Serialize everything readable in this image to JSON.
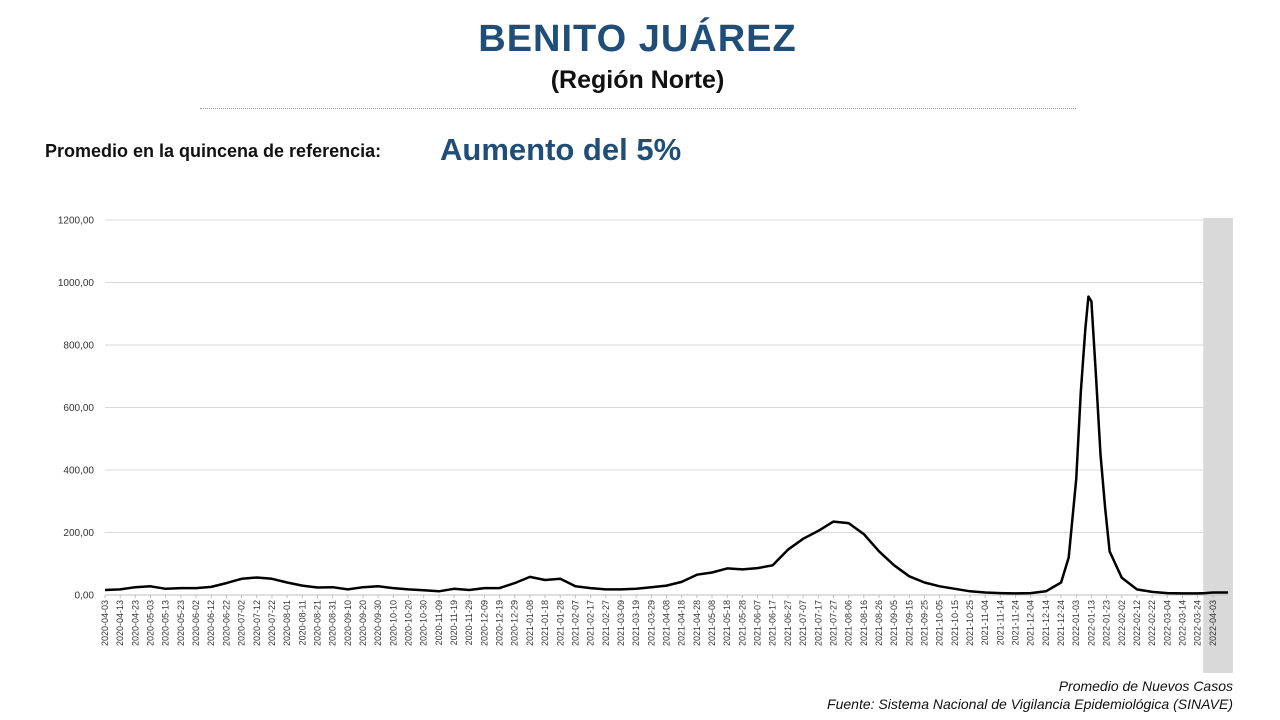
{
  "header": {
    "title": "BENITO JUÁREZ",
    "subtitle": "(Región Norte)"
  },
  "summary": {
    "label": "Promedio en la quincena de referencia:",
    "value": "Aumento del 5%"
  },
  "footer": {
    "legend": "Promedio de Nuevos Casos",
    "source": "Fuente: Sistema Nacional de Vigilancia Epidemiológica (SINAVE)"
  },
  "colors": {
    "title": "#1f4e79",
    "line": "#000000",
    "grid": "#d9d9d9",
    "highlight": "#d9d9d9"
  },
  "chart_data": {
    "type": "line",
    "title": "",
    "xlabel": "",
    "ylabel": "",
    "ylim": [
      0,
      1200
    ],
    "yticks": [
      "0,00",
      "200,00",
      "400,00",
      "600,00",
      "800,00",
      "1000,00",
      "1200,00"
    ],
    "grid": true,
    "shaded_range": [
      "2022-03-29",
      "2022-04-13"
    ],
    "x_tick_labels": [
      "2020-04-03",
      "2020-04-13",
      "2020-04-23",
      "2020-05-03",
      "2020-05-13",
      "2020-05-23",
      "2020-06-02",
      "2020-06-12",
      "2020-06-22",
      "2020-07-02",
      "2020-07-12",
      "2020-07-22",
      "2020-08-01",
      "2020-08-11",
      "2020-08-21",
      "2020-08-31",
      "2020-09-10",
      "2020-09-20",
      "2020-09-30",
      "2020-10-10",
      "2020-10-20",
      "2020-10-30",
      "2020-11-09",
      "2020-11-19",
      "2020-11-29",
      "2020-12-09",
      "2020-12-19",
      "2020-12-29",
      "2021-01-08",
      "2021-01-18",
      "2021-01-28",
      "2021-02-07",
      "2021-02-17",
      "2021-02-27",
      "2021-03-09",
      "2021-03-19",
      "2021-03-29",
      "2021-04-08",
      "2021-04-18",
      "2021-04-28",
      "2021-05-08",
      "2021-05-18",
      "2021-05-28",
      "2021-06-07",
      "2021-06-17",
      "2021-06-27",
      "2021-07-07",
      "2021-07-17",
      "2021-07-27",
      "2021-08-06",
      "2021-08-16",
      "2021-08-26",
      "2021-09-05",
      "2021-09-15",
      "2021-09-25",
      "2021-10-05",
      "2021-10-15",
      "2021-10-25",
      "2021-11-04",
      "2021-11-14",
      "2021-11-24",
      "2021-12-04",
      "2021-12-14",
      "2021-12-24",
      "2022-01-03",
      "2022-01-13",
      "2022-01-23",
      "2022-02-02",
      "2022-02-12",
      "2022-02-22",
      "2022-03-04",
      "2022-03-14",
      "2022-03-24",
      "2022-04-03"
    ],
    "series": [
      {
        "points": [
          [
            "2020-04-03",
            16
          ],
          [
            "2020-04-13",
            18
          ],
          [
            "2020-04-23",
            25
          ],
          [
            "2020-05-03",
            28
          ],
          [
            "2020-05-13",
            20
          ],
          [
            "2020-05-23",
            22
          ],
          [
            "2020-06-02",
            22
          ],
          [
            "2020-06-12",
            26
          ],
          [
            "2020-06-22",
            38
          ],
          [
            "2020-07-02",
            52
          ],
          [
            "2020-07-12",
            56
          ],
          [
            "2020-07-22",
            52
          ],
          [
            "2020-08-01",
            40
          ],
          [
            "2020-08-11",
            30
          ],
          [
            "2020-08-21",
            24
          ],
          [
            "2020-08-31",
            25
          ],
          [
            "2020-09-10",
            18
          ],
          [
            "2020-09-20",
            25
          ],
          [
            "2020-09-30",
            28
          ],
          [
            "2020-10-10",
            22
          ],
          [
            "2020-10-20",
            18
          ],
          [
            "2020-10-30",
            15
          ],
          [
            "2020-11-09",
            12
          ],
          [
            "2020-11-19",
            20
          ],
          [
            "2020-11-29",
            16
          ],
          [
            "2020-12-09",
            22
          ],
          [
            "2020-12-19",
            22
          ],
          [
            "2020-12-29",
            38
          ],
          [
            "2021-01-08",
            58
          ],
          [
            "2021-01-18",
            48
          ],
          [
            "2021-01-28",
            52
          ],
          [
            "2021-02-07",
            28
          ],
          [
            "2021-02-17",
            22
          ],
          [
            "2021-02-27",
            18
          ],
          [
            "2021-03-09",
            18
          ],
          [
            "2021-03-19",
            20
          ],
          [
            "2021-03-29",
            25
          ],
          [
            "2021-04-08",
            30
          ],
          [
            "2021-04-18",
            42
          ],
          [
            "2021-04-28",
            65
          ],
          [
            "2021-05-08",
            72
          ],
          [
            "2021-05-18",
            85
          ],
          [
            "2021-05-28",
            82
          ],
          [
            "2021-06-07",
            86
          ],
          [
            "2021-06-17",
            95
          ],
          [
            "2021-06-27",
            145
          ],
          [
            "2021-07-07",
            180
          ],
          [
            "2021-07-17",
            205
          ],
          [
            "2021-07-27",
            235
          ],
          [
            "2021-08-06",
            230
          ],
          [
            "2021-08-16",
            195
          ],
          [
            "2021-08-26",
            140
          ],
          [
            "2021-09-05",
            95
          ],
          [
            "2021-09-15",
            60
          ],
          [
            "2021-09-25",
            40
          ],
          [
            "2021-10-05",
            28
          ],
          [
            "2021-10-15",
            20
          ],
          [
            "2021-10-25",
            12
          ],
          [
            "2021-11-04",
            8
          ],
          [
            "2021-11-14",
            6
          ],
          [
            "2021-11-24",
            5
          ],
          [
            "2021-12-04",
            6
          ],
          [
            "2021-12-14",
            12
          ],
          [
            "2021-12-24",
            40
          ],
          [
            "2021-12-29",
            120
          ],
          [
            "2022-01-03",
            370
          ],
          [
            "2022-01-06",
            650
          ],
          [
            "2022-01-09",
            850
          ],
          [
            "2022-01-11",
            955
          ],
          [
            "2022-01-13",
            940
          ],
          [
            "2022-01-16",
            700
          ],
          [
            "2022-01-19",
            450
          ],
          [
            "2022-01-22",
            280
          ],
          [
            "2022-01-25",
            140
          ],
          [
            "2022-02-02",
            55
          ],
          [
            "2022-02-12",
            18
          ],
          [
            "2022-02-22",
            10
          ],
          [
            "2022-03-04",
            6
          ],
          [
            "2022-03-14",
            5
          ],
          [
            "2022-03-24",
            5
          ],
          [
            "2022-03-29",
            6
          ],
          [
            "2022-04-03",
            8
          ],
          [
            "2022-04-13",
            8
          ]
        ]
      }
    ]
  }
}
